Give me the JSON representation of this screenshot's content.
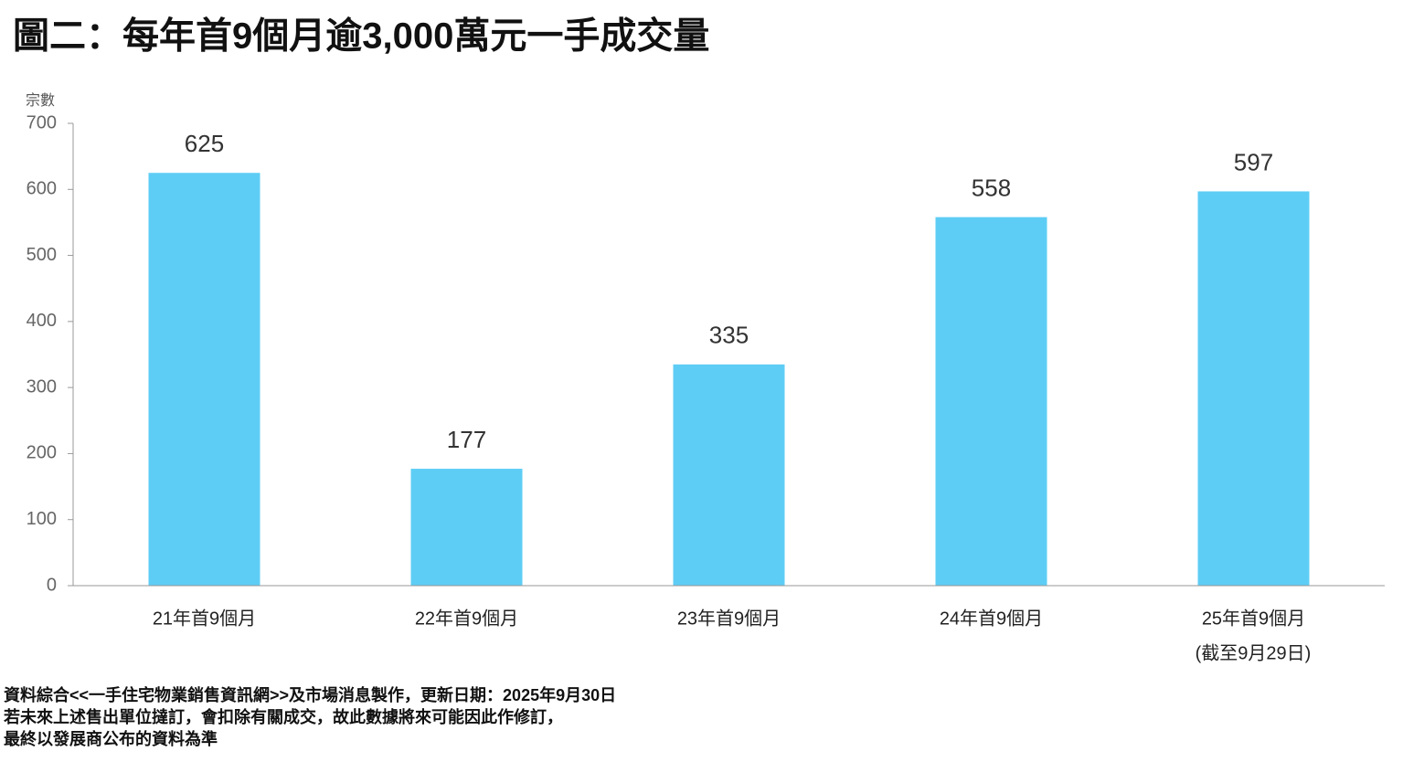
{
  "chart_data": {
    "type": "bar",
    "title": "圖二：每年首9個月逾3,000萬元一手成交量",
    "y_label": "宗數",
    "categories": [
      "21年首9個月",
      "22年首9個月",
      "23年首9個月",
      "24年首9個月",
      "25年首9個月"
    ],
    "category_note": "(截至9月29日)",
    "values": [
      625,
      177,
      335,
      558,
      597
    ],
    "color": "#5ecdf5",
    "ylim": [
      0,
      700
    ],
    "yticks": [
      0,
      100,
      200,
      300,
      400,
      500,
      600,
      700
    ],
    "grid": false,
    "footnotes": [
      "資料綜合<<一手住宅物業銷售資訊網>>及市場消息製作，更新日期：2025年9月30日",
      "若未來上述售出單位撻訂，會扣除有關成交，故此數據將來可能因此作修訂，",
      "最終以發展商公布的資料為準"
    ]
  }
}
